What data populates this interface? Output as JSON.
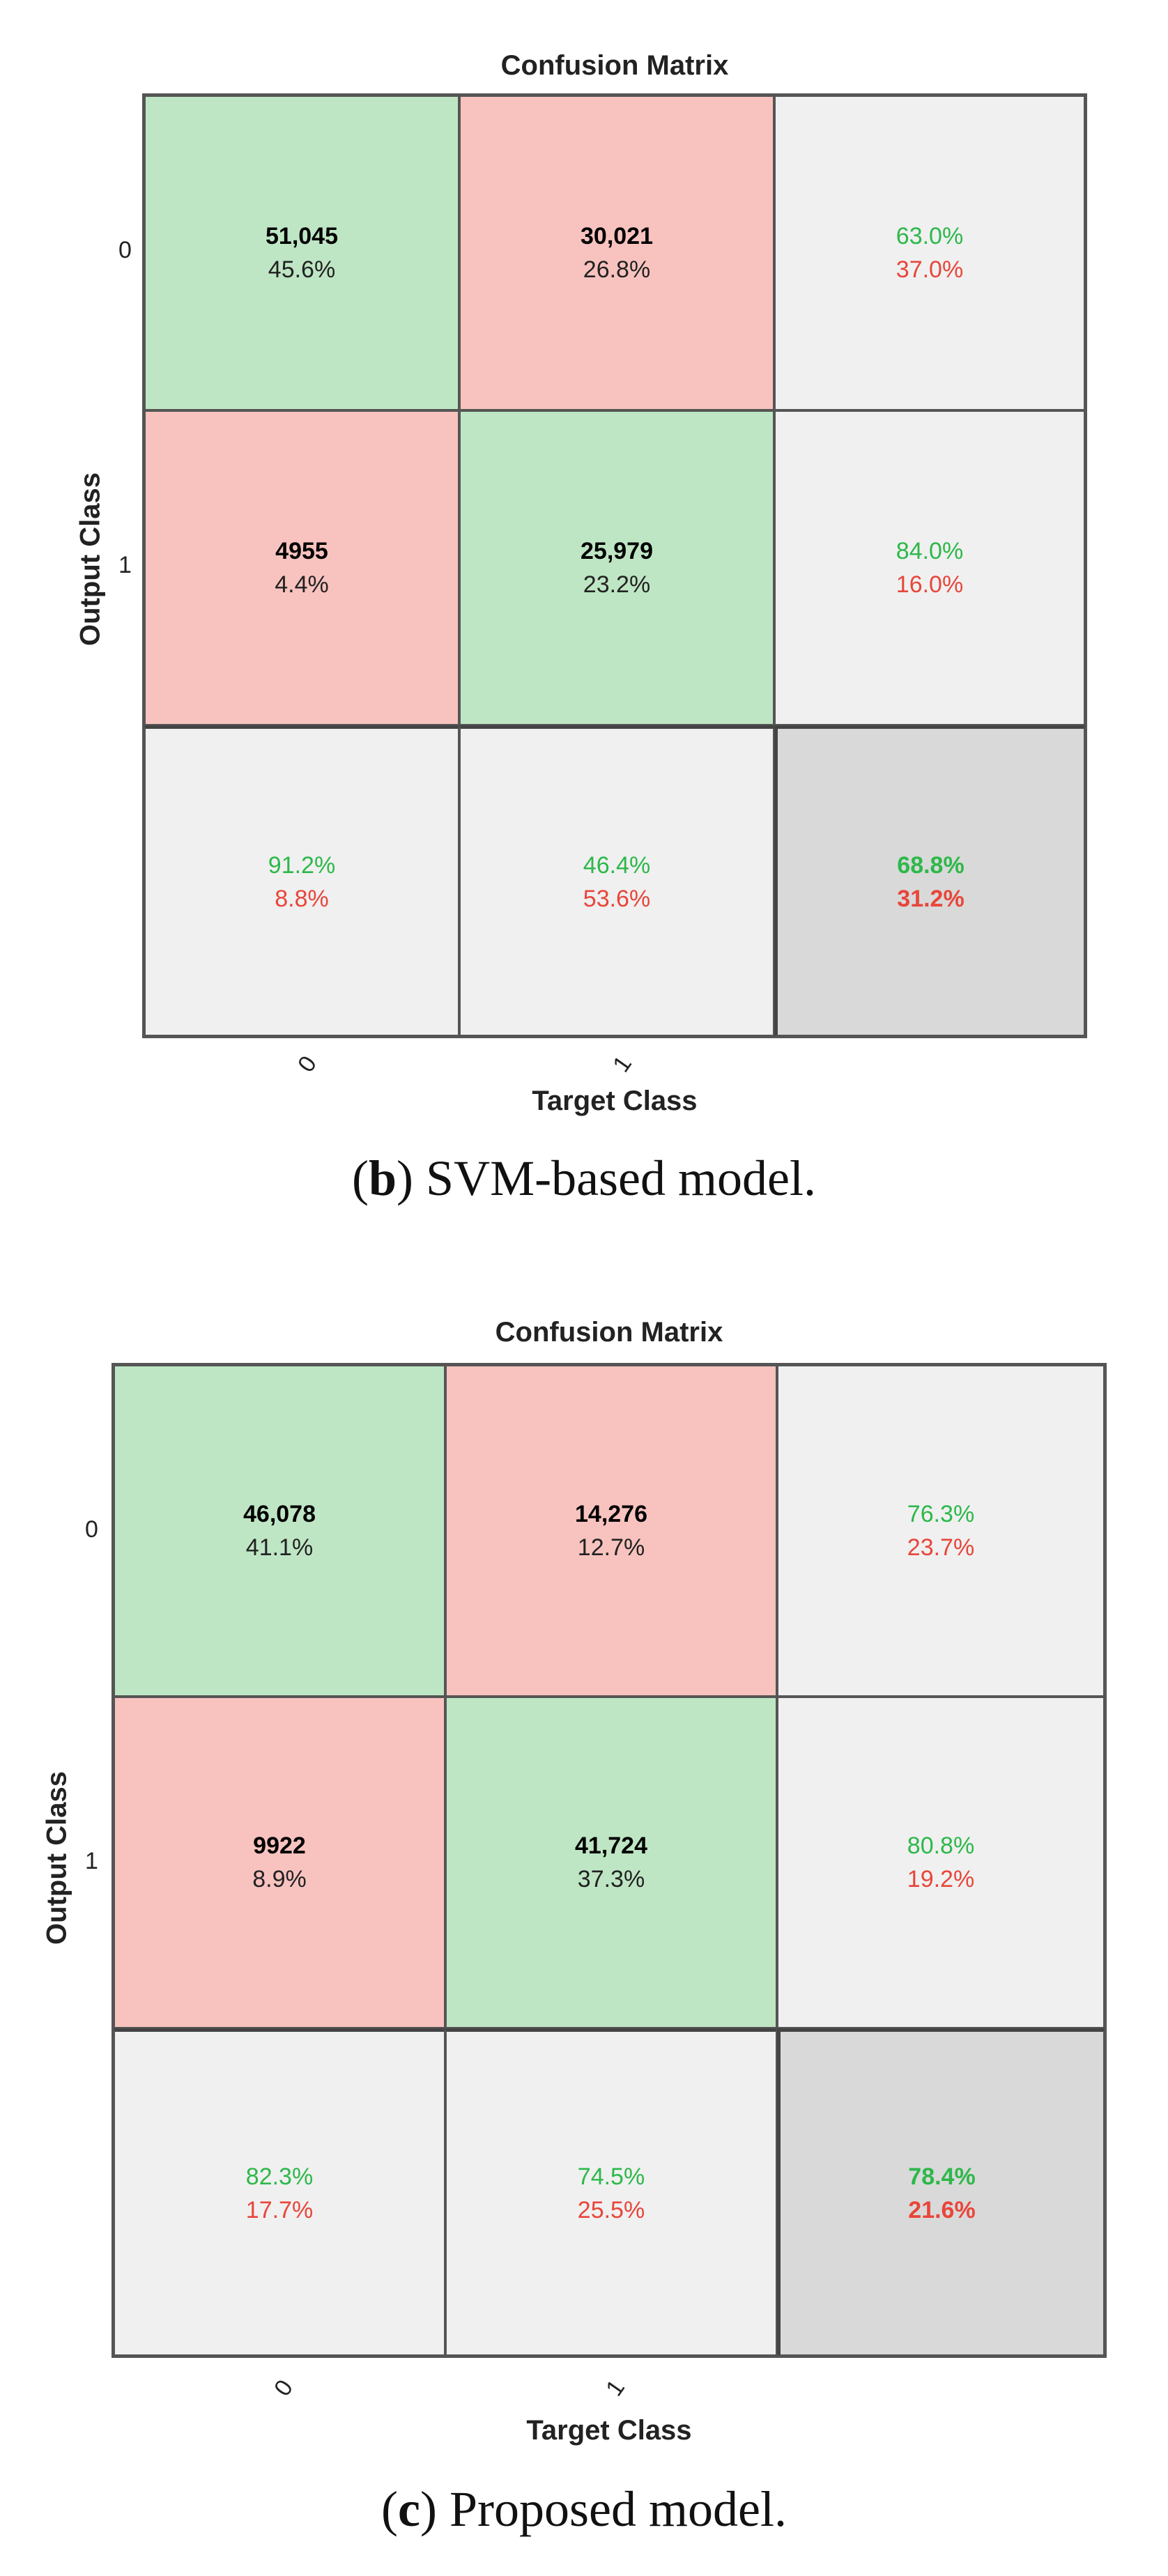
{
  "chart_data": [
    {
      "type": "heatmap",
      "title": "Confusion Matrix",
      "ylabel": "Output Class",
      "xlabel": "Target Class",
      "row_ticks": [
        "0",
        "1"
      ],
      "col_ticks": [
        "0",
        "1"
      ],
      "cells": [
        [
          {
            "count": "51,045",
            "pct": "45.6%"
          },
          {
            "count": "30,021",
            "pct": "26.8%"
          }
        ],
        [
          {
            "count": "4955",
            "pct": "4.4%"
          },
          {
            "count": "25,979",
            "pct": "23.2%"
          }
        ]
      ],
      "row_summary": [
        {
          "good": "63.0%",
          "bad": "37.0%"
        },
        {
          "good": "84.0%",
          "bad": "16.0%"
        }
      ],
      "col_summary": [
        {
          "good": "91.2%",
          "bad": "8.8%"
        },
        {
          "good": "46.4%",
          "bad": "53.6%"
        }
      ],
      "overall": {
        "good": "68.8%",
        "bad": "31.2%"
      },
      "caption_letter": "b",
      "caption_text": "SVM-based model."
    },
    {
      "type": "heatmap",
      "title": "Confusion Matrix",
      "ylabel": "Output Class",
      "xlabel": "Target Class",
      "row_ticks": [
        "0",
        "1"
      ],
      "col_ticks": [
        "0",
        "1"
      ],
      "cells": [
        [
          {
            "count": "46,078",
            "pct": "41.1%"
          },
          {
            "count": "14,276",
            "pct": "12.7%"
          }
        ],
        [
          {
            "count": "9922",
            "pct": "8.9%"
          },
          {
            "count": "41,724",
            "pct": "37.3%"
          }
        ]
      ],
      "row_summary": [
        {
          "good": "76.3%",
          "bad": "23.7%"
        },
        {
          "good": "80.8%",
          "bad": "19.2%"
        }
      ],
      "col_summary": [
        {
          "good": "82.3%",
          "bad": "17.7%"
        },
        {
          "good": "74.5%",
          "bad": "25.5%"
        }
      ],
      "overall": {
        "good": "78.4%",
        "bad": "21.6%"
      },
      "caption_letter": "c",
      "caption_text": "Proposed model."
    }
  ],
  "colors": {
    "correct": "#bfe6c4",
    "incorrect": "#f8c3bf",
    "summary": "#f0f0f0",
    "overall": "#d9d9d9",
    "good_text": "#2db84a",
    "bad_text": "#e8463a"
  }
}
